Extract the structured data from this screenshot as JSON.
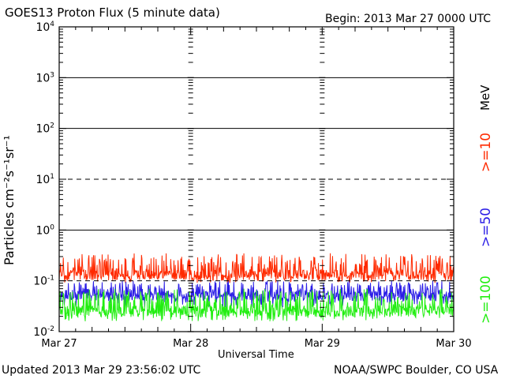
{
  "header": {
    "title": "GOES13 Proton Flux (5 minute data)",
    "begin": "Begin: 2013 Mar 27 0000 UTC"
  },
  "footer": {
    "updated": "Updated 2013 Mar 29 23:56:02 UTC",
    "source": "NOAA/SWPC Boulder, CO USA"
  },
  "chart_data": {
    "type": "line",
    "title": "GOES13 Proton Flux (5 minute data)",
    "xlabel": "Universal Time",
    "ylabel": "Particles cm⁻²s⁻¹sr⁻¹",
    "y_scale": "log",
    "ylim": [
      0.01,
      10000
    ],
    "xlim": [
      "2013-03-27 00:00",
      "2013-03-30 00:00"
    ],
    "x_tick_labels": [
      "Mar 27",
      "Mar 28",
      "Mar 29",
      "Mar 30"
    ],
    "y_tick_labels": [
      {
        "base": "10",
        "exp": "4"
      },
      {
        "base": "10",
        "exp": "3"
      },
      {
        "base": "10",
        "exp": "2"
      },
      {
        "base": "10",
        "exp": "1"
      },
      {
        "base": "10",
        "exp": "0"
      },
      {
        "base": "10",
        "exp": "-1"
      },
      {
        "base": "10",
        "exp": "-2"
      }
    ],
    "threshold_lines": [
      {
        "y": 10,
        "style": "dashed"
      },
      {
        "y": 0.1,
        "style": "dashed"
      }
    ],
    "unit_label": "MeV",
    "series": [
      {
        "name": ">=10",
        "color": "#ff2a00",
        "typical_range": [
          0.09,
          0.35
        ],
        "median": 0.13
      },
      {
        "name": ">=50",
        "color": "#2b1ee6",
        "typical_range": [
          0.03,
          0.1
        ],
        "median": 0.05
      },
      {
        "name": ">=100",
        "color": "#22ee11",
        "typical_range": [
          0.016,
          0.07
        ],
        "median": 0.025
      }
    ]
  }
}
